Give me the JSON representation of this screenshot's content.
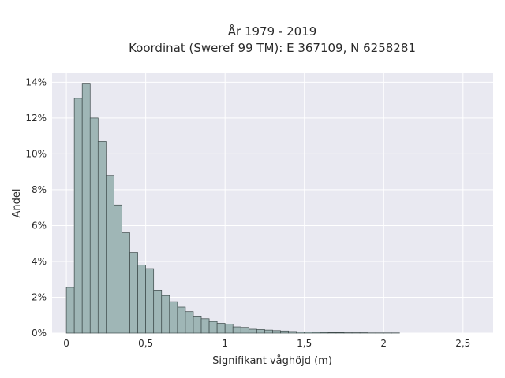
{
  "chart_data": {
    "type": "bar",
    "title_lines": [
      "År 1979 - 2019",
      "Koordinat (Sweref 99 TM): E 367109, N 6258281"
    ],
    "xlabel": "Signifikant våghöjd (m)",
    "ylabel": "Andel",
    "xlim": [
      -0.09,
      2.69
    ],
    "ylim": [
      0,
      14.5
    ],
    "x_ticks": [
      0,
      0.5,
      1,
      1.5,
      2,
      2.5
    ],
    "x_tick_labels": [
      "0",
      "0,5",
      "1",
      "1,5",
      "2",
      "2,5"
    ],
    "y_ticks": [
      0,
      2,
      4,
      6,
      8,
      10,
      12,
      14
    ],
    "y_tick_labels": [
      "0%",
      "2%",
      "4%",
      "6%",
      "8%",
      "10%",
      "12%",
      "14%"
    ],
    "grid": true,
    "bin_width": 0.05,
    "bin_starts": [
      0,
      0.05,
      0.1,
      0.15,
      0.2,
      0.25,
      0.3,
      0.35,
      0.4,
      0.45,
      0.5,
      0.55,
      0.6,
      0.65,
      0.7,
      0.75,
      0.8,
      0.85,
      0.9,
      0.95,
      1.0,
      1.05,
      1.1,
      1.15,
      1.2,
      1.25,
      1.3,
      1.35,
      1.4,
      1.45,
      1.5,
      1.55,
      1.6,
      1.65,
      1.7,
      1.75,
      1.8,
      1.85,
      1.9,
      1.95,
      2.0,
      2.05
    ],
    "values": [
      2.55,
      13.1,
      13.9,
      12.0,
      10.7,
      8.8,
      7.15,
      5.6,
      4.5,
      3.8,
      3.6,
      2.4,
      2.1,
      1.75,
      1.45,
      1.2,
      0.95,
      0.8,
      0.65,
      0.55,
      0.5,
      0.35,
      0.32,
      0.22,
      0.2,
      0.17,
      0.14,
      0.12,
      0.09,
      0.07,
      0.06,
      0.05,
      0.04,
      0.03,
      0.03,
      0.02,
      0.02,
      0.02,
      0.01,
      0.01,
      0.01,
      0.01
    ],
    "colors": {
      "bar_fill": "#9fb6b6",
      "bar_stroke": "#3d4a4a",
      "plot_bg": "#e9e9f1",
      "grid": "#ffffff"
    }
  }
}
